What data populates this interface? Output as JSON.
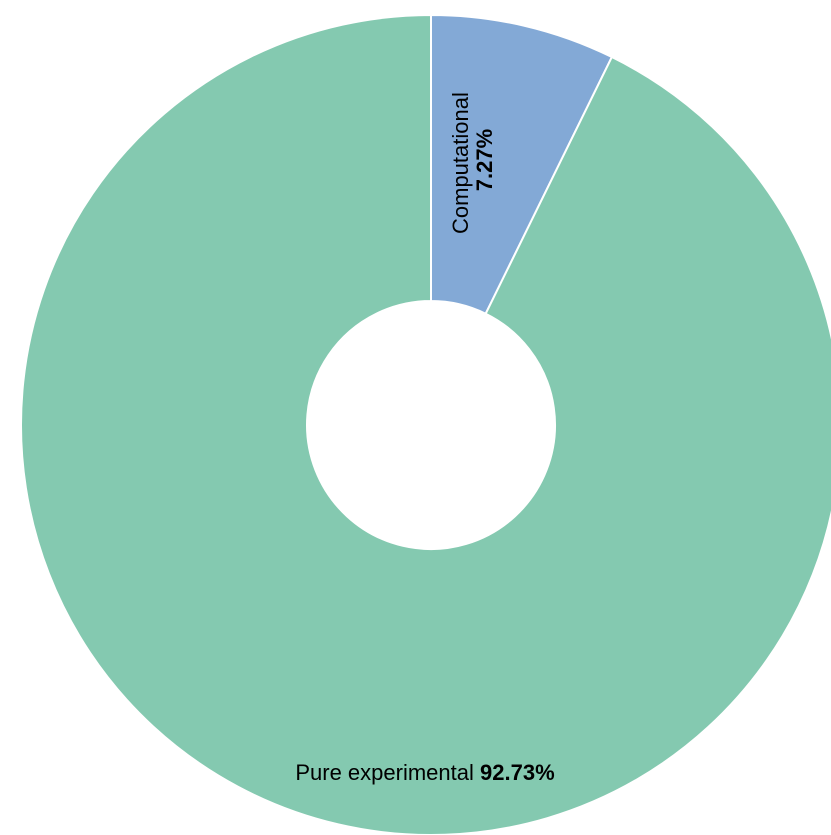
{
  "chart_data": {
    "type": "pie",
    "donut": true,
    "title": "",
    "start_angle_deg": 0,
    "direction": "clockwise",
    "slices": [
      {
        "label": "Computational",
        "value": 7.27,
        "value_label": "7.27%",
        "color": "#83a9d6"
      },
      {
        "label": "Pure experimental",
        "value": 92.73,
        "value_label": "92.73%",
        "color": "#84c9b0"
      }
    ]
  }
}
